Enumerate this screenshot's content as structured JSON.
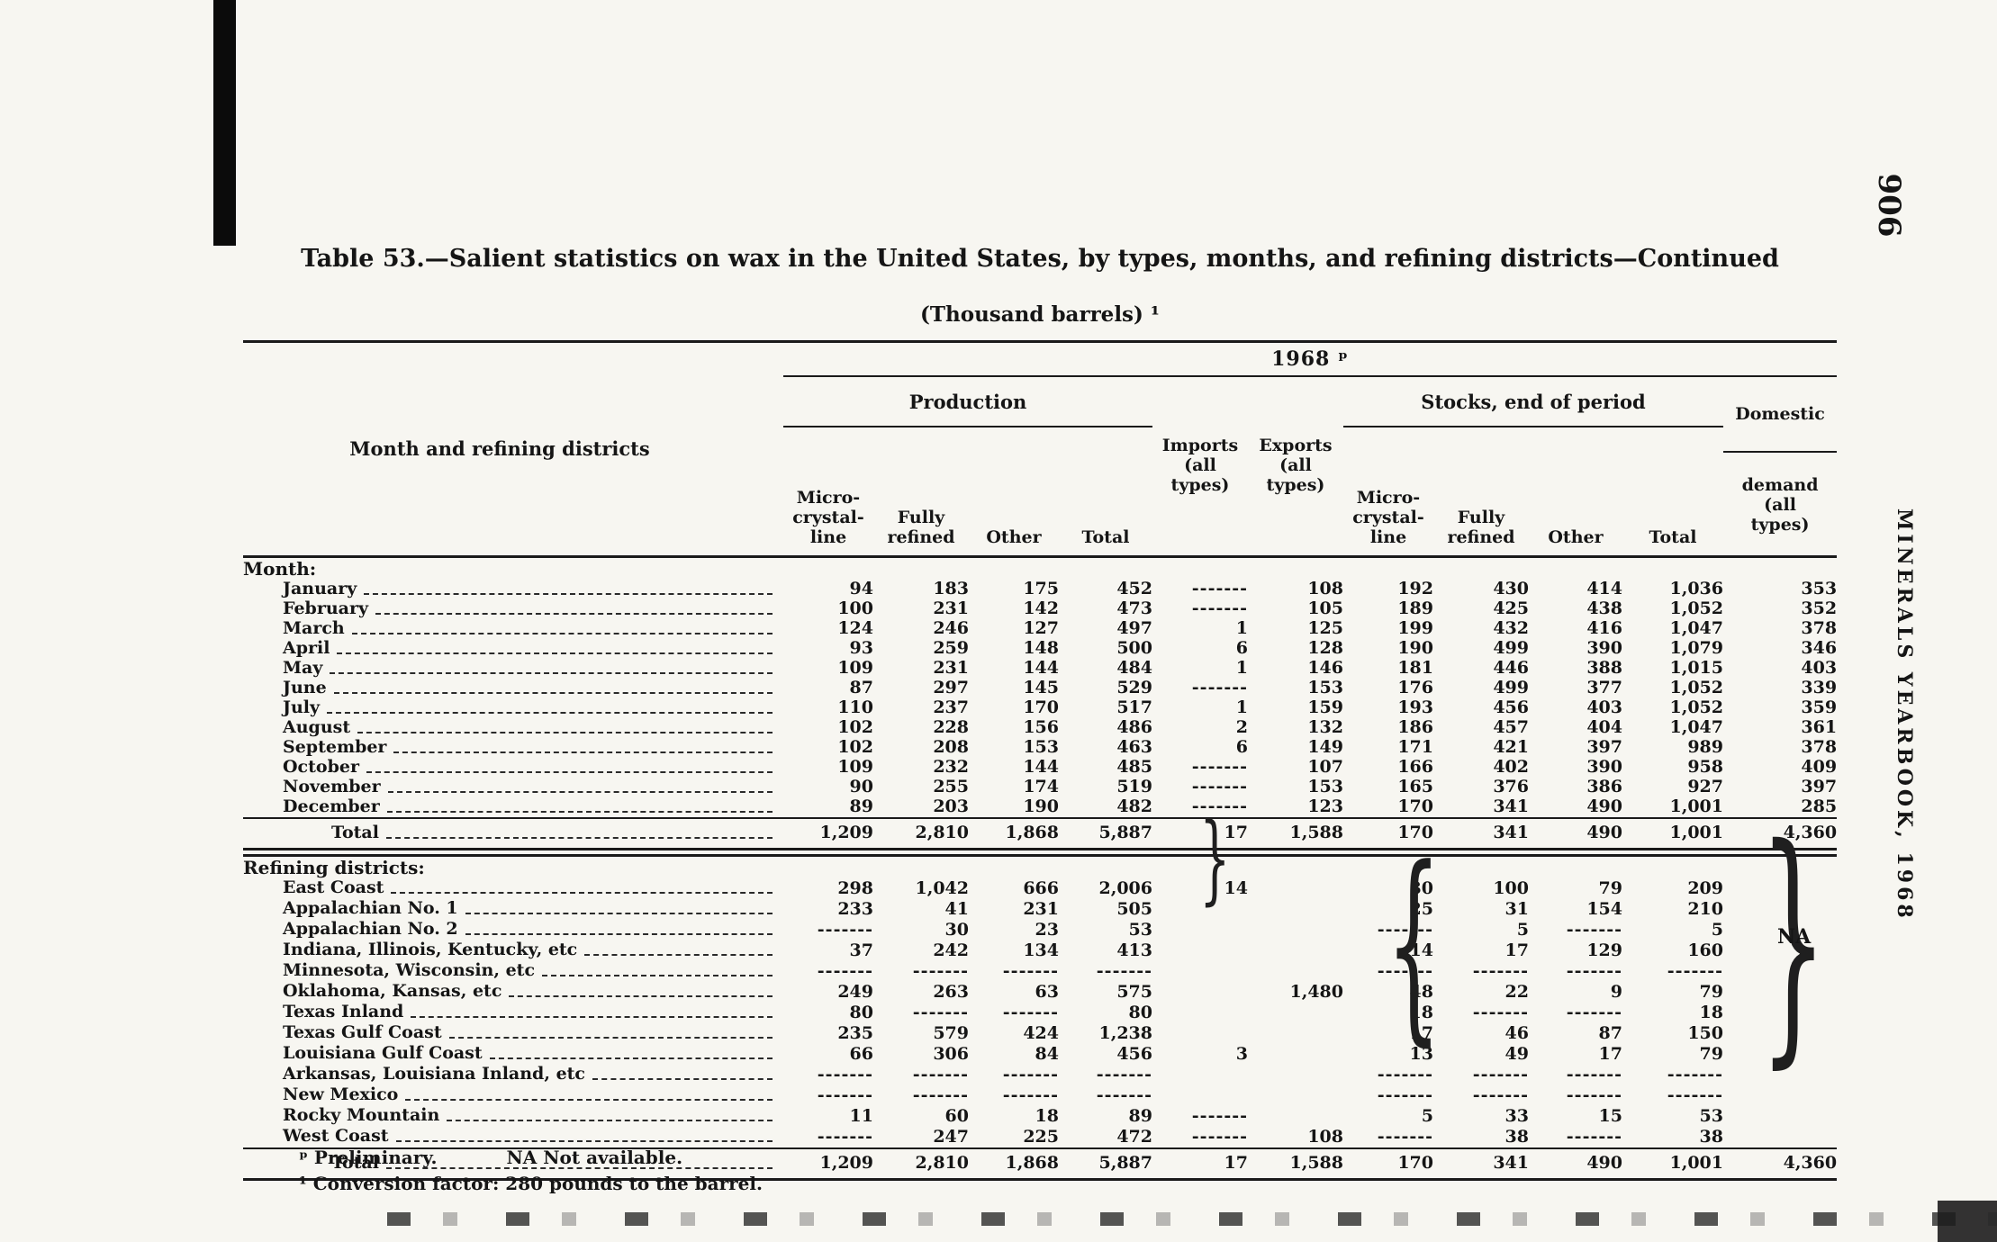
{
  "page": {
    "number": "906",
    "sidebar": "MINERALS YEARBOOK, 1968"
  },
  "table": {
    "title": "Table 53.—Salient statistics on wax in the United States, by types, months, and refining districts—Continued",
    "subtitle": "(Thousand barrels) ¹",
    "year": "1968 ᵖ",
    "stub": "Month and refining districts",
    "groups": {
      "production": "Production",
      "imports": "Imports\n(all\ntypes)",
      "exports": "Exports\n(all\ntypes)",
      "stocks": "Stocks, end of period"
    },
    "demand": {
      "line1": "Domestic",
      "rest": "demand\n(all\ntypes)"
    },
    "production_cols": [
      "Micro-\ncrystal-\nline",
      "Fully\nrefined",
      "Other",
      "Total"
    ],
    "stocks_cols": [
      "Micro-\ncrystal-\nline",
      "Fully\nrefined",
      "Other",
      "Total"
    ],
    "sections": [
      {
        "label": "Month:",
        "rows": [
          {
            "label": "January",
            "values": [
              "94",
              "183",
              "175",
              "452",
              "-------",
              "108",
              "192",
              "430",
              "414",
              "1,036",
              "353"
            ]
          },
          {
            "label": "February",
            "values": [
              "100",
              "231",
              "142",
              "473",
              "-------",
              "105",
              "189",
              "425",
              "438",
              "1,052",
              "352"
            ]
          },
          {
            "label": "March",
            "values": [
              "124",
              "246",
              "127",
              "497",
              "1",
              "125",
              "199",
              "432",
              "416",
              "1,047",
              "378"
            ]
          },
          {
            "label": "April",
            "values": [
              "93",
              "259",
              "148",
              "500",
              "6",
              "128",
              "190",
              "499",
              "390",
              "1,079",
              "346"
            ]
          },
          {
            "label": "May",
            "values": [
              "109",
              "231",
              "144",
              "484",
              "1",
              "146",
              "181",
              "446",
              "388",
              "1,015",
              "403"
            ]
          },
          {
            "label": "June",
            "values": [
              "87",
              "297",
              "145",
              "529",
              "-------",
              "153",
              "176",
              "499",
              "377",
              "1,052",
              "339"
            ]
          },
          {
            "label": "July",
            "values": [
              "110",
              "237",
              "170",
              "517",
              "1",
              "159",
              "193",
              "456",
              "403",
              "1,052",
              "359"
            ]
          },
          {
            "label": "August",
            "values": [
              "102",
              "228",
              "156",
              "486",
              "2",
              "132",
              "186",
              "457",
              "404",
              "1,047",
              "361"
            ]
          },
          {
            "label": "September",
            "values": [
              "102",
              "208",
              "153",
              "463",
              "6",
              "149",
              "171",
              "421",
              "397",
              "989",
              "378"
            ]
          },
          {
            "label": "October",
            "values": [
              "109",
              "232",
              "144",
              "485",
              "-------",
              "107",
              "166",
              "402",
              "390",
              "958",
              "409"
            ]
          },
          {
            "label": "November",
            "values": [
              "90",
              "255",
              "174",
              "519",
              "-------",
              "153",
              "165",
              "376",
              "386",
              "927",
              "397"
            ]
          },
          {
            "label": "December",
            "values": [
              "89",
              "203",
              "190",
              "482",
              "-------",
              "123",
              "170",
              "341",
              "490",
              "1,001",
              "285"
            ]
          }
        ],
        "total": {
          "label": "Total",
          "values": [
            "1,209",
            "2,810",
            "1,868",
            "5,887",
            "17",
            "1,588",
            "170",
            "341",
            "490",
            "1,001",
            "4,360"
          ]
        }
      },
      {
        "label": "Refining districts:",
        "rows": [
          {
            "label": "East Coast",
            "values": [
              "298",
              "1,042",
              "666",
              "2,006",
              "14",
              "",
              "30",
              "100",
              "79",
              "209",
              ""
            ]
          },
          {
            "label": "Appalachian No. 1",
            "values": [
              "233",
              "41",
              "231",
              "505",
              "",
              "",
              "25",
              "31",
              "154",
              "210",
              ""
            ]
          },
          {
            "label": "Appalachian No. 2",
            "values": [
              "-------",
              "30",
              "23",
              "53",
              "",
              "",
              "-------",
              "5",
              "-------",
              "5",
              ""
            ]
          },
          {
            "label": "Indiana, Illinois, Kentucky, etc",
            "values": [
              "37",
              "242",
              "134",
              "413",
              "",
              "",
              "14",
              "17",
              "129",
              "160",
              ""
            ]
          },
          {
            "label": "Minnesota, Wisconsin, etc",
            "values": [
              "-------",
              "-------",
              "-------",
              "-------",
              "",
              "",
              "-------",
              "-------",
              "-------",
              "-------",
              ""
            ]
          },
          {
            "label": "Oklahoma, Kansas, etc",
            "values": [
              "249",
              "263",
              "63",
              "575",
              "",
              "1,480",
              "48",
              "22",
              "9",
              "79",
              ""
            ]
          },
          {
            "label": "Texas Inland",
            "values": [
              "80",
              "-------",
              "-------",
              "80",
              "",
              "",
              "18",
              "-------",
              "-------",
              "18",
              ""
            ]
          },
          {
            "label": "Texas Gulf Coast",
            "values": [
              "235",
              "579",
              "424",
              "1,238",
              "",
              "",
              "17",
              "46",
              "87",
              "150",
              ""
            ]
          },
          {
            "label": "Louisiana Gulf Coast",
            "values": [
              "66",
              "306",
              "84",
              "456",
              "3",
              "",
              "13",
              "49",
              "17",
              "79",
              ""
            ]
          },
          {
            "label": "Arkansas, Louisiana Inland, etc",
            "values": [
              "-------",
              "-------",
              "-------",
              "-------",
              "",
              "",
              "-------",
              "-------",
              "-------",
              "-------",
              ""
            ]
          },
          {
            "label": "New Mexico",
            "values": [
              "-------",
              "-------",
              "-------",
              "-------",
              "",
              "",
              "-------",
              "-------",
              "-------",
              "-------",
              ""
            ]
          },
          {
            "label": "Rocky Mountain",
            "values": [
              "11",
              "60",
              "18",
              "89",
              "-------",
              "",
              "5",
              "33",
              "15",
              "53",
              ""
            ]
          },
          {
            "label": "West Coast",
            "values": [
              "-------",
              "247",
              "225",
              "472",
              "-------",
              "108",
              "-------",
              "38",
              "-------",
              "38",
              ""
            ]
          }
        ],
        "total": {
          "label": "Total",
          "values": [
            "1,209",
            "2,810",
            "1,868",
            "5,887",
            "17",
            "1,588",
            "170",
            "341",
            "490",
            "1,001",
            "4,360"
          ]
        }
      }
    ],
    "na": "NA",
    "braces": {
      "imports": "}",
      "exports": "{",
      "demand": "}"
    },
    "footnotes": {
      "prelim": "ᵖ Preliminary.",
      "na": "NA  Not available.",
      "conversion": "¹ Conversion factor: 280 pounds to the barrel."
    }
  }
}
